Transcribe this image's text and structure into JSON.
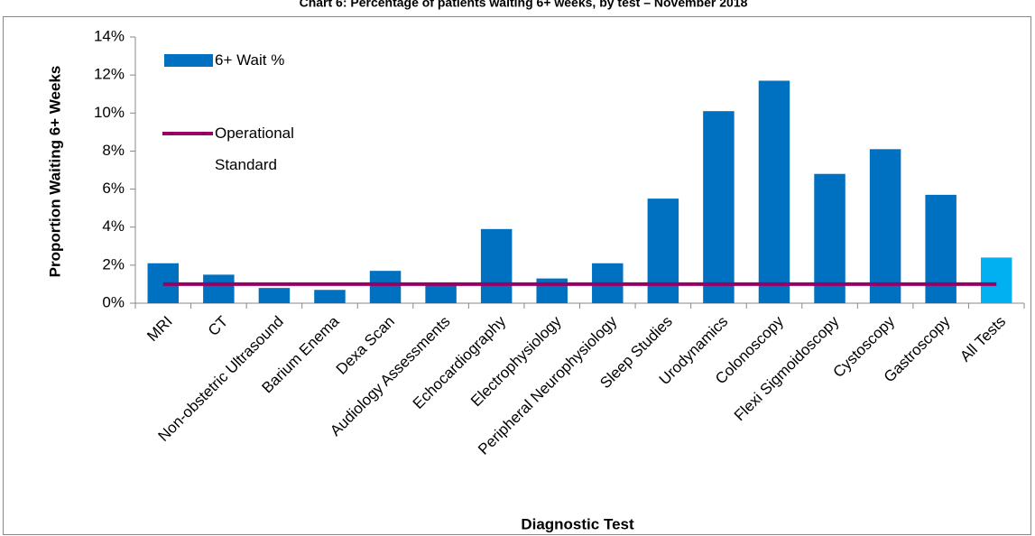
{
  "chart_data": {
    "type": "bar",
    "title": "Chart 6: Percentage of patients waiting 6+ weeks, by test – November 2018",
    "x_label": "Diagnostic Test",
    "y_label": "Proportion Waiting 6+ Weeks",
    "categories": [
      "MRI",
      "CT",
      "Non-obstetric Ultrasound",
      "Barium Enema",
      "Dexa Scan",
      "Audiology Assessments",
      "Echocardiography",
      "Electrophysiology",
      "Peripheral Neurophysiology",
      "Sleep Studies",
      "Urodynamics",
      "Colonoscopy",
      "Flexi Sigmoidoscopy",
      "Cystoscopy",
      "Gastroscopy",
      "All Tests"
    ],
    "series": [
      {
        "name": "6+ Wait %",
        "type": "bar",
        "color": "#0070c0",
        "colors": [
          "#0070c0",
          "#0070c0",
          "#0070c0",
          "#0070c0",
          "#0070c0",
          "#0070c0",
          "#0070c0",
          "#0070c0",
          "#0070c0",
          "#0070c0",
          "#0070c0",
          "#0070c0",
          "#0070c0",
          "#0070c0",
          "#0070c0",
          "#00b0f0"
        ],
        "values": [
          2.1,
          1.5,
          0.8,
          0.7,
          1.7,
          1.0,
          3.9,
          1.3,
          2.1,
          5.5,
          10.1,
          11.7,
          6.8,
          8.1,
          5.7,
          2.4
        ]
      },
      {
        "name": "Operational Standard",
        "type": "line",
        "color": "#990066",
        "values": [
          1,
          1,
          1,
          1,
          1,
          1,
          1,
          1,
          1,
          1,
          1,
          1,
          1,
          1,
          1,
          1
        ]
      }
    ],
    "ylim": [
      0,
      14
    ],
    "yticks": [
      {
        "value": 0,
        "label": "0%"
      },
      {
        "value": 2,
        "label": "2%"
      },
      {
        "value": 4,
        "label": "4%"
      },
      {
        "value": 6,
        "label": "6%"
      },
      {
        "value": 8,
        "label": "8%"
      },
      {
        "value": 10,
        "label": "10%"
      },
      {
        "value": 12,
        "label": "12%"
      },
      {
        "value": 14,
        "label": "14%"
      }
    ],
    "grid": false,
    "legend": "top-left"
  }
}
